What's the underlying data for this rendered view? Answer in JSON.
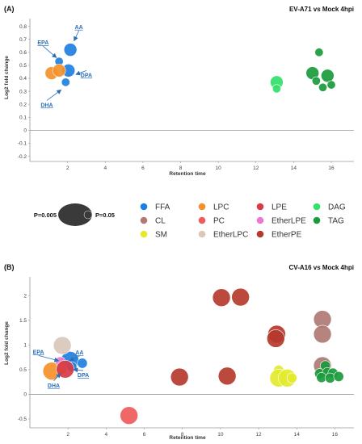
{
  "colors": {
    "FFA": "#1f7fe0",
    "LPC": "#f5902a",
    "CL": "#b07a73",
    "PC": "#ef5a5a",
    "SM": "#e3ea2c",
    "LPE": "#d93a44",
    "EtherLPE": "#ea78d2",
    "EtherLPC": "#d9c8bb",
    "EtherPE": "#b53a2c",
    "DAG": "#33e06a",
    "TAG": "#1a9a3c",
    "axis": "#9a9a9a",
    "arrow": "#2c6fb7",
    "pvalue": "#3a3a3a"
  },
  "chart_data": [
    {
      "type": "scatter",
      "panel_label": "(A)",
      "title": "EV-A71 vs Mock 4hpi",
      "xlabel": "Retention time",
      "ylabel": "Log2 fold change",
      "xlim": [
        0,
        17.2
      ],
      "ylim": [
        -0.24,
        0.86
      ],
      "xticks": [
        "2",
        "4",
        "6",
        "8",
        "10",
        "12",
        "14",
        "16"
      ],
      "yticks": [
        "-0.2",
        "-0.1",
        "0",
        "0.1",
        "0.2",
        "0.3",
        "0.4",
        "0.5",
        "0.6",
        "0.7",
        "0.8"
      ],
      "grid": false,
      "series": [
        {
          "name": "FFA",
          "points": [
            {
              "x": 2.15,
              "y": 0.62,
              "p": 0.005
            },
            {
              "x": 1.55,
              "y": 0.53,
              "p": 0.05
            },
            {
              "x": 2.05,
              "y": 0.46,
              "p": 0.005
            },
            {
              "x": 1.9,
              "y": 0.37,
              "p": 0.05
            }
          ]
        },
        {
          "name": "LPC",
          "points": [
            {
              "x": 1.15,
              "y": 0.44,
              "p": 0.005
            },
            {
              "x": 1.55,
              "y": 0.46,
              "p": 0.005
            }
          ]
        },
        {
          "name": "DAG",
          "points": [
            {
              "x": 13.1,
              "y": 0.37,
              "p": 0.005
            },
            {
              "x": 13.1,
              "y": 0.32,
              "p": 0.05
            }
          ]
        },
        {
          "name": "TAG",
          "points": [
            {
              "x": 15.35,
              "y": 0.6,
              "p": 0.05
            },
            {
              "x": 15.0,
              "y": 0.44,
              "p": 0.005
            },
            {
              "x": 15.8,
              "y": 0.42,
              "p": 0.005
            },
            {
              "x": 15.2,
              "y": 0.38,
              "p": 0.05
            },
            {
              "x": 15.55,
              "y": 0.33,
              "p": 0.05
            },
            {
              "x": 16.0,
              "y": 0.35,
              "p": 0.05
            }
          ]
        }
      ],
      "annotations": [
        {
          "text": "AA",
          "x": 2.6,
          "y": 0.78,
          "tx": 2.35,
          "ty": 0.69
        },
        {
          "text": "EPA",
          "x": 0.7,
          "y": 0.66,
          "tx": 1.4,
          "ty": 0.56
        },
        {
          "text": "DPA",
          "x": 3.0,
          "y": 0.41,
          "tx": 2.45,
          "ty": 0.43
        },
        {
          "text": "DHA",
          "x": 0.9,
          "y": 0.18,
          "tx": 1.65,
          "ty": 0.31
        }
      ]
    },
    {
      "type": "scatter",
      "panel_label": "(B)",
      "title": "CV-A16 vs Mock 4hpi",
      "xlabel": "Retention time",
      "ylabel": "Log2 fold change",
      "xlim": [
        0,
        17.0
      ],
      "ylim": [
        -0.68,
        2.38
      ],
      "xticks": [
        "2",
        "4",
        "6",
        "8",
        "10",
        "12",
        "14",
        "16"
      ],
      "yticks": [
        "-0.5",
        "0",
        "0.5",
        "1",
        "1.5",
        "2"
      ],
      "grid": false,
      "series": [
        {
          "name": "FFA",
          "points": [
            {
              "x": 2.1,
              "y": 0.69,
              "p": 0.005
            },
            {
              "x": 2.75,
              "y": 0.63,
              "p": 0.05
            },
            {
              "x": 2.2,
              "y": 0.56,
              "p": 0.05
            }
          ]
        },
        {
          "name": "LPC",
          "points": [
            {
              "x": 1.15,
              "y": 0.47,
              "p": 0.005
            },
            {
              "x": 1.65,
              "y": 0.5,
              "p": 0.05
            }
          ]
        },
        {
          "name": "EtherLPC",
          "points": [
            {
              "x": 1.7,
              "y": 0.99,
              "p": 0.005
            }
          ]
        },
        {
          "name": "EtherLPE",
          "points": [
            {
              "x": 1.6,
              "y": 0.66,
              "p": 0.05
            }
          ]
        },
        {
          "name": "LPE",
          "points": [
            {
              "x": 1.85,
              "y": 0.51,
              "p": 0.005
            }
          ]
        },
        {
          "name": "PC",
          "points": [
            {
              "x": 5.2,
              "y": -0.43,
              "p": 0.005
            }
          ]
        },
        {
          "name": "EtherPE",
          "points": [
            {
              "x": 7.85,
              "y": 0.35,
              "p": 0.005
            },
            {
              "x": 10.05,
              "y": 1.96,
              "p": 0.005
            },
            {
              "x": 11.05,
              "y": 1.97,
              "p": 0.005
            },
            {
              "x": 10.35,
              "y": 0.37,
              "p": 0.005
            },
            {
              "x": 12.95,
              "y": 1.22,
              "p": 0.005
            },
            {
              "x": 12.9,
              "y": 1.13,
              "p": 0.005
            }
          ]
        },
        {
          "name": "CL",
          "points": [
            {
              "x": 15.35,
              "y": 1.52,
              "p": 0.005
            },
            {
              "x": 15.35,
              "y": 1.22,
              "p": 0.005
            },
            {
              "x": 15.35,
              "y": 0.58,
              "p": 0.005
            }
          ]
        },
        {
          "name": "SM",
          "points": [
            {
              "x": 13.05,
              "y": 0.49,
              "p": 0.05
            },
            {
              "x": 13.05,
              "y": 0.33,
              "p": 0.005
            },
            {
              "x": 13.5,
              "y": 0.33,
              "p": 0.005
            },
            {
              "x": 13.75,
              "y": 0.33,
              "p": 0.05
            }
          ]
        },
        {
          "name": "TAG",
          "points": [
            {
              "x": 15.5,
              "y": 0.58,
              "p": 0.05
            },
            {
              "x": 15.2,
              "y": 0.42,
              "p": 0.05
            },
            {
              "x": 15.6,
              "y": 0.44,
              "p": 0.05
            },
            {
              "x": 15.9,
              "y": 0.43,
              "p": 0.05
            },
            {
              "x": 15.3,
              "y": 0.34,
              "p": 0.05
            },
            {
              "x": 15.75,
              "y": 0.33,
              "p": 0.05
            },
            {
              "x": 16.2,
              "y": 0.36,
              "p": 0.05
            }
          ]
        }
      ],
      "annotations": [
        {
          "text": "EPA",
          "x": 0.45,
          "y": 0.82,
          "tx": 1.5,
          "ty": 0.68
        },
        {
          "text": "AA",
          "x": 2.6,
          "y": 0.81,
          "tx": 2.1,
          "ty": 0.68
        },
        {
          "text": "DPA",
          "x": 2.8,
          "y": 0.35,
          "tx": 2.3,
          "ty": 0.5
        },
        {
          "text": "DHA",
          "x": 1.25,
          "y": 0.14,
          "tx": 1.6,
          "ty": 0.42
        }
      ]
    }
  ],
  "legend": {
    "pvalue": {
      "large_label": "P=0.005",
      "small_label": "P=0.05"
    },
    "entries": [
      {
        "name": "FFA",
        "key": "FFA"
      },
      {
        "name": "LPC",
        "key": "LPC"
      },
      {
        "name": "LPE",
        "key": "LPE"
      },
      {
        "name": "DAG",
        "key": "DAG"
      },
      {
        "name": "CL",
        "key": "CL"
      },
      {
        "name": "PC",
        "key": "PC"
      },
      {
        "name": "EtherLPE",
        "key": "EtherLPE"
      },
      {
        "name": "TAG",
        "key": "TAG"
      },
      {
        "name": "SM",
        "key": "SM"
      },
      {
        "name": "EtherLPC",
        "key": "EtherLPC"
      },
      {
        "name": "EtherPE",
        "key": "EtherPE"
      }
    ]
  }
}
